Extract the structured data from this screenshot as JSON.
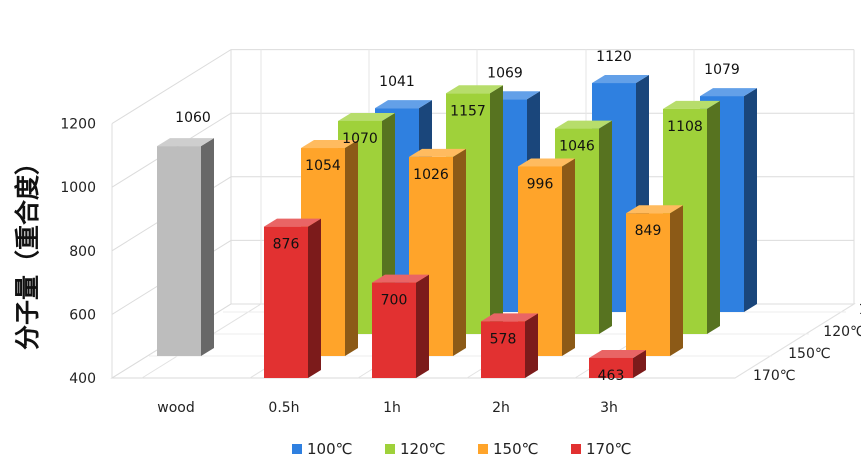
{
  "chart_data": {
    "type": "bar",
    "subtype": "3d-clustered",
    "ylabel": "分子量（重合度）",
    "ylim": [
      400,
      1200
    ],
    "yticks": [
      400,
      600,
      800,
      1000,
      1200
    ],
    "categories": [
      "wood",
      "0.5h",
      "1h",
      "2h",
      "3h"
    ],
    "depth_labels": [
      "100℃",
      "120℃",
      "150℃",
      "170℃"
    ],
    "reference": {
      "category": "wood",
      "value": 1060,
      "color": "#bdbdbd"
    },
    "series": [
      {
        "name": "100℃",
        "color": "#2f80e0",
        "values": [
          null,
          1041,
          1069,
          1120,
          1079
        ]
      },
      {
        "name": "120℃",
        "color": "#9fd13a",
        "values": [
          null,
          1070,
          1157,
          1046,
          1108
        ]
      },
      {
        "name": "150℃",
        "color": "#ffa42a",
        "values": [
          null,
          1054,
          1026,
          996,
          849
        ]
      },
      {
        "name": "170℃",
        "color": "#e23131",
        "values": [
          null,
          876,
          700,
          578,
          463
        ]
      }
    ],
    "legend": {
      "position": "bottom",
      "entries": [
        "100℃",
        "120℃",
        "150℃",
        "170℃"
      ]
    },
    "grid": true
  }
}
